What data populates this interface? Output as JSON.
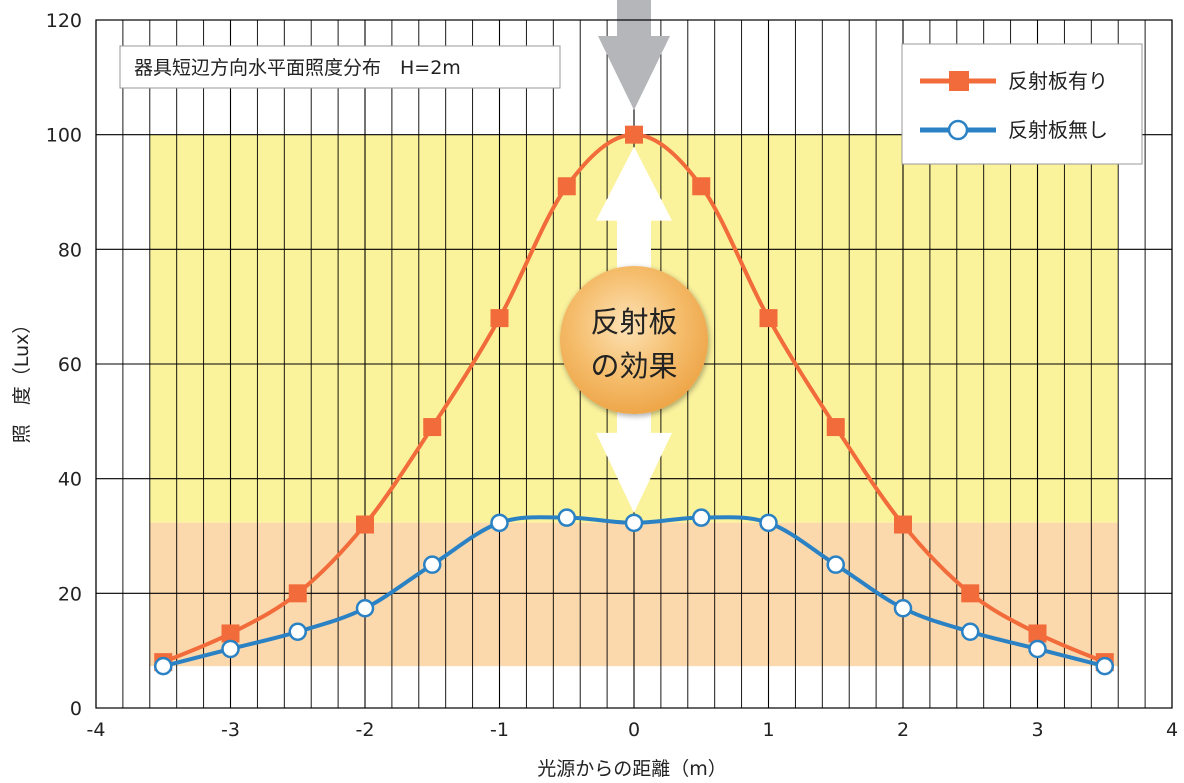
{
  "chart_data": {
    "type": "line",
    "title": "器具短辺方向水平面照度分布　H=2m",
    "xlabel": "光源からの距離（m）",
    "ylabel": "照　度（Lux）",
    "xlim": [
      -4,
      4
    ],
    "ylim": [
      0,
      120
    ],
    "x_ticks": [
      "-4",
      "-3",
      "-2",
      "-1",
      "0",
      "1",
      "2",
      "3",
      "4"
    ],
    "y_ticks": [
      "0",
      "20",
      "40",
      "60",
      "80",
      "100",
      "120"
    ],
    "x": [
      -3.5,
      -3,
      -2.5,
      -2,
      -1.5,
      -1,
      -0.5,
      0,
      0.5,
      1,
      1.5,
      2,
      2.5,
      3,
      3.5
    ],
    "series": [
      {
        "name": "反射板有り",
        "color": "#f26b3a",
        "marker": "square",
        "values": [
          8,
          13,
          20,
          32,
          49,
          68,
          91,
          100,
          91,
          68,
          49,
          32,
          20,
          13,
          8
        ]
      },
      {
        "name": "反射板無し",
        "color": "#2a82c4",
        "marker": "circle",
        "values": [
          7.3,
          10.3,
          13.3,
          17.4,
          25,
          32.3,
          33.2,
          32.3,
          33.2,
          32.3,
          25,
          17.4,
          13.3,
          10.3,
          7.3
        ]
      }
    ],
    "bands": [
      {
        "label": "with-reflector-range",
        "from": 32.3,
        "to": 100,
        "x_from": -3.6,
        "x_to": 3.6,
        "color": "#fbf29c"
      },
      {
        "label": "without-reflector-range",
        "from": 7.3,
        "to": 32.3,
        "x_from": -3.6,
        "x_to": 3.6,
        "color": "#fcd8ad"
      }
    ],
    "annotation": {
      "badge_lines": [
        "反射板",
        "の効果"
      ],
      "arrow_x": 0
    },
    "legend_position": "top-right",
    "grid": true,
    "colors": {
      "band_upper": "#fbf29c",
      "band_lower": "#fcd8ad",
      "badge": "#f2b15a",
      "arrow_gray": "#b4b6b9",
      "grid": "#000000"
    }
  }
}
